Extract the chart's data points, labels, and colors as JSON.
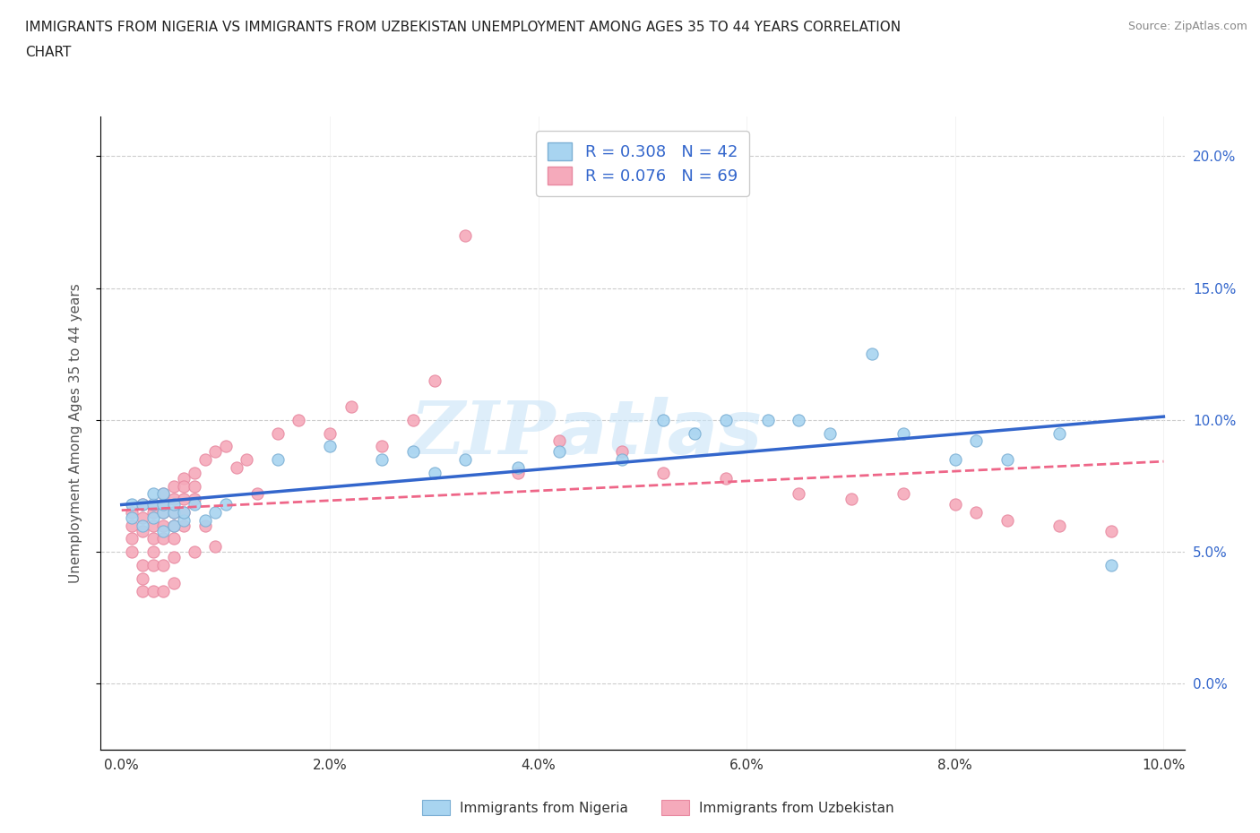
{
  "title_line1": "IMMIGRANTS FROM NIGERIA VS IMMIGRANTS FROM UZBEKISTAN UNEMPLOYMENT AMONG AGES 35 TO 44 YEARS CORRELATION",
  "title_line2": "CHART",
  "source": "Source: ZipAtlas.com",
  "ylabel": "Unemployment Among Ages 35 to 44 years",
  "xlabel_nigeria": "Immigrants from Nigeria",
  "xlabel_uzbekistan": "Immigrants from Uzbekistan",
  "xlim": [
    -0.002,
    0.102
  ],
  "ylim": [
    -0.025,
    0.215
  ],
  "xticks": [
    0.0,
    0.02,
    0.04,
    0.06,
    0.08,
    0.1
  ],
  "xticklabels": [
    "0.0%",
    "2.0%",
    "4.0%",
    "6.0%",
    "8.0%",
    "10.0%"
  ],
  "yticks": [
    0.0,
    0.05,
    0.1,
    0.15,
    0.2
  ],
  "yticklabels": [
    "0.0%",
    "5.0%",
    "10.0%",
    "15.0%",
    "20.0%"
  ],
  "nigeria_color": "#A8D4F0",
  "nigeria_edge": "#7BAFD4",
  "uzbekistan_color": "#F5AABB",
  "uzbekistan_edge": "#E888A0",
  "nigeria_line_color": "#3366CC",
  "uzbekistan_line_color": "#EE6688",
  "R_nigeria": 0.308,
  "N_nigeria": 42,
  "R_uzbekistan": 0.076,
  "N_uzbekistan": 69,
  "nigeria_scatter_x": [
    0.001,
    0.001,
    0.002,
    0.002,
    0.003,
    0.003,
    0.003,
    0.004,
    0.004,
    0.004,
    0.004,
    0.005,
    0.005,
    0.005,
    0.006,
    0.006,
    0.007,
    0.008,
    0.009,
    0.01,
    0.015,
    0.02,
    0.025,
    0.028,
    0.03,
    0.033,
    0.038,
    0.042,
    0.048,
    0.052,
    0.055,
    0.058,
    0.062,
    0.065,
    0.068,
    0.072,
    0.075,
    0.08,
    0.082,
    0.085,
    0.09,
    0.095
  ],
  "nigeria_scatter_y": [
    0.063,
    0.068,
    0.06,
    0.068,
    0.063,
    0.068,
    0.072,
    0.058,
    0.065,
    0.068,
    0.072,
    0.06,
    0.065,
    0.068,
    0.062,
    0.065,
    0.068,
    0.062,
    0.065,
    0.068,
    0.085,
    0.09,
    0.085,
    0.088,
    0.08,
    0.085,
    0.082,
    0.088,
    0.085,
    0.1,
    0.095,
    0.1,
    0.1,
    0.1,
    0.095,
    0.125,
    0.095,
    0.085,
    0.092,
    0.085,
    0.095,
    0.045
  ],
  "uzbekistan_scatter_x": [
    0.001,
    0.001,
    0.001,
    0.001,
    0.002,
    0.002,
    0.002,
    0.002,
    0.002,
    0.002,
    0.003,
    0.003,
    0.003,
    0.003,
    0.003,
    0.003,
    0.003,
    0.004,
    0.004,
    0.004,
    0.004,
    0.004,
    0.004,
    0.004,
    0.005,
    0.005,
    0.005,
    0.005,
    0.005,
    0.005,
    0.005,
    0.006,
    0.006,
    0.006,
    0.006,
    0.006,
    0.007,
    0.007,
    0.007,
    0.007,
    0.008,
    0.008,
    0.009,
    0.009,
    0.01,
    0.011,
    0.012,
    0.013,
    0.015,
    0.017,
    0.02,
    0.022,
    0.025,
    0.028,
    0.03,
    0.033,
    0.038,
    0.042,
    0.048,
    0.052,
    0.058,
    0.065,
    0.07,
    0.075,
    0.08,
    0.082,
    0.085,
    0.09,
    0.095
  ],
  "uzbekistan_scatter_y": [
    0.06,
    0.065,
    0.055,
    0.05,
    0.068,
    0.063,
    0.058,
    0.045,
    0.04,
    0.035,
    0.068,
    0.065,
    0.06,
    0.055,
    0.05,
    0.045,
    0.035,
    0.072,
    0.068,
    0.065,
    0.06,
    0.055,
    0.045,
    0.035,
    0.075,
    0.07,
    0.065,
    0.06,
    0.055,
    0.048,
    0.038,
    0.078,
    0.075,
    0.07,
    0.065,
    0.06,
    0.08,
    0.075,
    0.07,
    0.05,
    0.085,
    0.06,
    0.088,
    0.052,
    0.09,
    0.082,
    0.085,
    0.072,
    0.095,
    0.1,
    0.095,
    0.105,
    0.09,
    0.1,
    0.115,
    0.17,
    0.08,
    0.092,
    0.088,
    0.08,
    0.078,
    0.072,
    0.07,
    0.072,
    0.068,
    0.065,
    0.062,
    0.06,
    0.058
  ],
  "watermark_zip": "ZIP",
  "watermark_atlas": "atlas",
  "background_color": "#FFFFFF",
  "grid_color": "#CCCCCC"
}
